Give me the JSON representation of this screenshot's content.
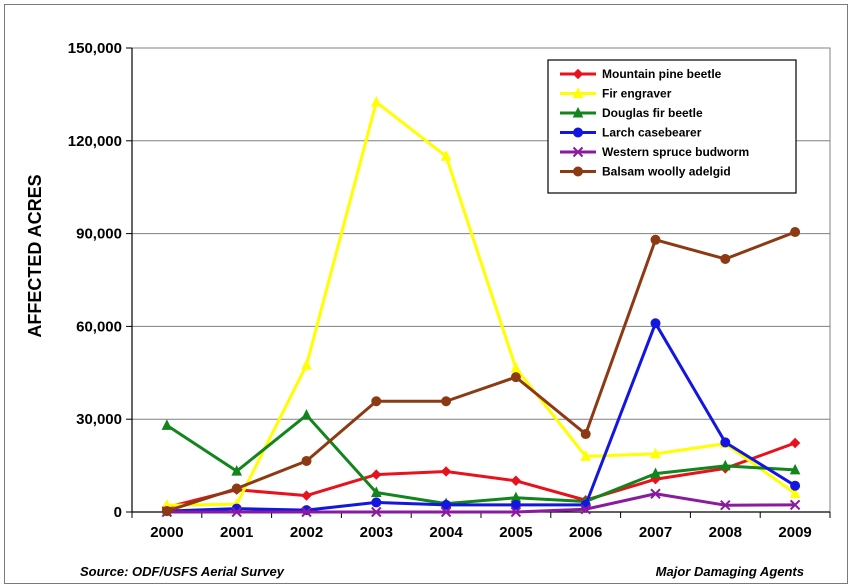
{
  "chart_data": {
    "type": "line",
    "title": "",
    "ylabel": "AFFECTED ACRES",
    "xlabel": "",
    "x": [
      "2000",
      "2001",
      "2002",
      "2003",
      "2004",
      "2005",
      "2006",
      "2007",
      "2008",
      "2009"
    ],
    "ylim": [
      0,
      150000
    ],
    "yticks": [
      0,
      30000,
      60000,
      90000,
      120000,
      150000
    ],
    "ytick_labels": [
      "0",
      "30,000",
      "60,000",
      "90,000",
      "120,000",
      "150,000"
    ],
    "grid": "horizontal",
    "legend": "top-right",
    "series": [
      {
        "name": "Mountain pine beetle",
        "color": "#e8121c",
        "marker": "diamond",
        "values": [
          1500,
          7200,
          5300,
          12100,
          13100,
          10100,
          3800,
          10600,
          14100,
          22300
        ]
      },
      {
        "name": "Fir engraver",
        "color": "#ffff00",
        "marker": "triangle",
        "values": [
          2200,
          2500,
          47500,
          132500,
          115000,
          46500,
          18000,
          18800,
          22100,
          6000
        ]
      },
      {
        "name": "Douglas fir beetle",
        "color": "#12851c",
        "marker": "triangle",
        "values": [
          28000,
          13200,
          31300,
          6300,
          2700,
          4600,
          3400,
          12400,
          14900,
          13600
        ]
      },
      {
        "name": "Larch casebearer",
        "color": "#1216e0",
        "marker": "circle",
        "values": [
          300,
          1100,
          600,
          3100,
          2300,
          2300,
          2300,
          61000,
          22500,
          8500
        ]
      },
      {
        "name": "Western spruce budworm",
        "color": "#8a1a9e",
        "marker": "x",
        "values": [
          0,
          0,
          0,
          0,
          0,
          0,
          900,
          5900,
          2200,
          2300
        ]
      },
      {
        "name": "Balsam woolly adelgid",
        "color": "#8c3a14",
        "marker": "circle",
        "values": [
          300,
          7600,
          16500,
          35800,
          35800,
          43600,
          25200,
          88000,
          81800,
          90500
        ]
      }
    ]
  },
  "notes": {
    "source": "Source: ODF/USFS Aerial Survey",
    "agents": "Major Damaging Agents"
  }
}
